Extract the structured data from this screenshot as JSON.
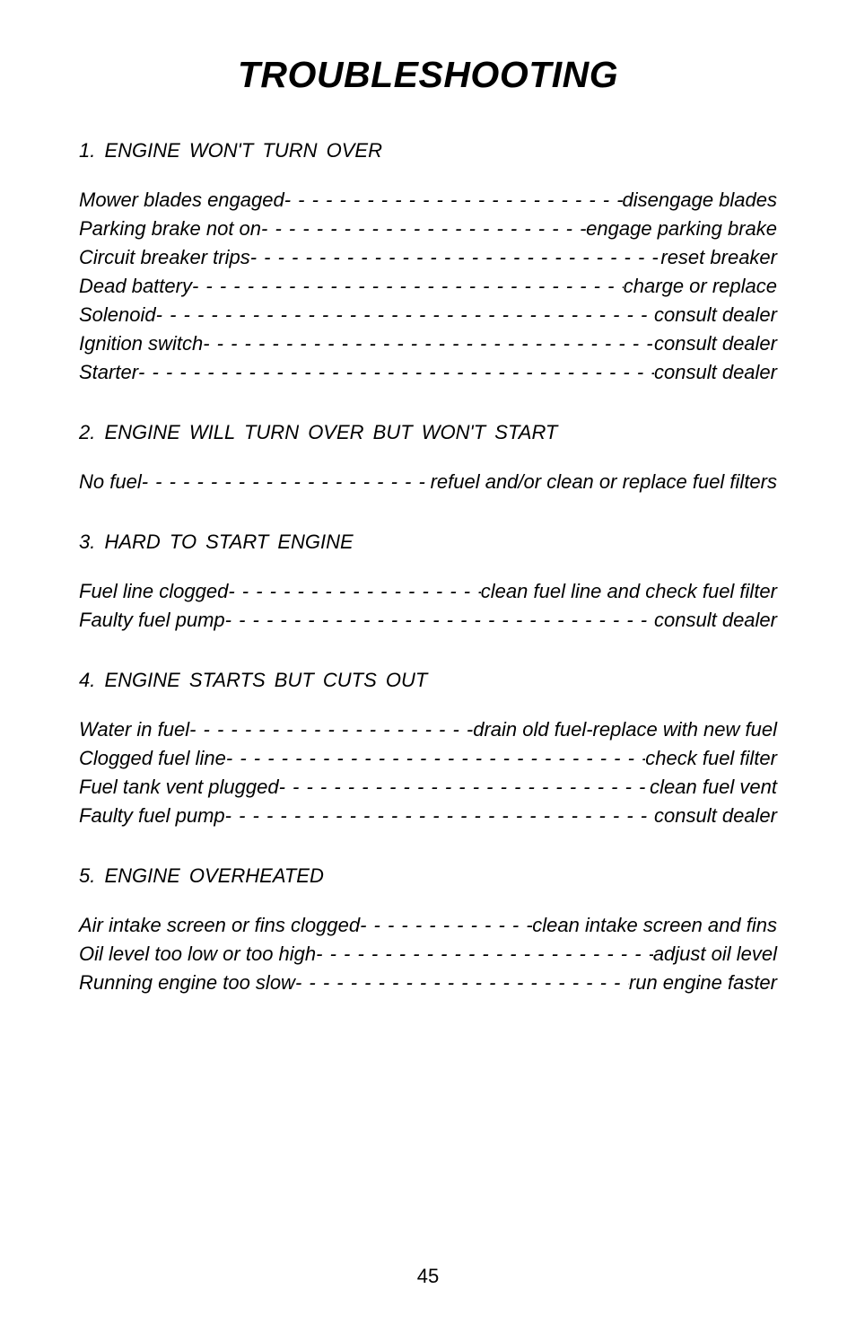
{
  "title": "TROUBLESHOOTING",
  "pageNumber": "45",
  "sections": [
    {
      "heading": "1.  ENGINE  WON'T  TURN  OVER",
      "items": [
        {
          "cause": "Mower blades engaged",
          "remedy": " disengage blades"
        },
        {
          "cause": "Parking brake not on",
          "remedy": " engage parking brake"
        },
        {
          "cause": "Circuit breaker trips",
          "remedy": "reset breaker"
        },
        {
          "cause": "Dead battery",
          "remedy": " charge or replace"
        },
        {
          "cause": "Solenoid",
          "remedy": " consult dealer"
        },
        {
          "cause": "Ignition switch",
          "remedy": " consult dealer"
        },
        {
          "cause": "Starter",
          "remedy": " consult dealer"
        }
      ]
    },
    {
      "heading": "2.  ENGINE  WILL  TURN  OVER  BUT  WON'T  START",
      "items": [
        {
          "cause": "No fuel",
          "remedy": " refuel and/or clean or replace fuel filters"
        }
      ]
    },
    {
      "heading": "3.  HARD  TO  START  ENGINE",
      "items": [
        {
          "cause": "Fuel line clogged",
          "remedy": " clean fuel line and check fuel filter"
        },
        {
          "cause": "Faulty fuel pump",
          "remedy": " consult dealer"
        }
      ]
    },
    {
      "heading": "4.  ENGINE  STARTS  BUT  CUTS  OUT",
      "items": [
        {
          "cause": "Water in fuel",
          "remedy": "drain old fuel-replace with new fuel"
        },
        {
          "cause": "Clogged fuel line",
          "remedy": " check fuel filter"
        },
        {
          "cause": "Fuel tank vent plugged",
          "remedy": "clean fuel vent"
        },
        {
          "cause": "Faulty fuel pump",
          "remedy": " consult dealer"
        }
      ]
    },
    {
      "heading": "5.  ENGINE  OVERHEATED",
      "items": [
        {
          "cause": "Air intake screen or fins clogged",
          "remedy": "clean intake screen and fins"
        },
        {
          "cause": "Oil level too low or too high",
          "remedy": "adjust oil level"
        },
        {
          "cause": "Running engine too slow ",
          "remedy": "run engine faster"
        }
      ]
    }
  ]
}
